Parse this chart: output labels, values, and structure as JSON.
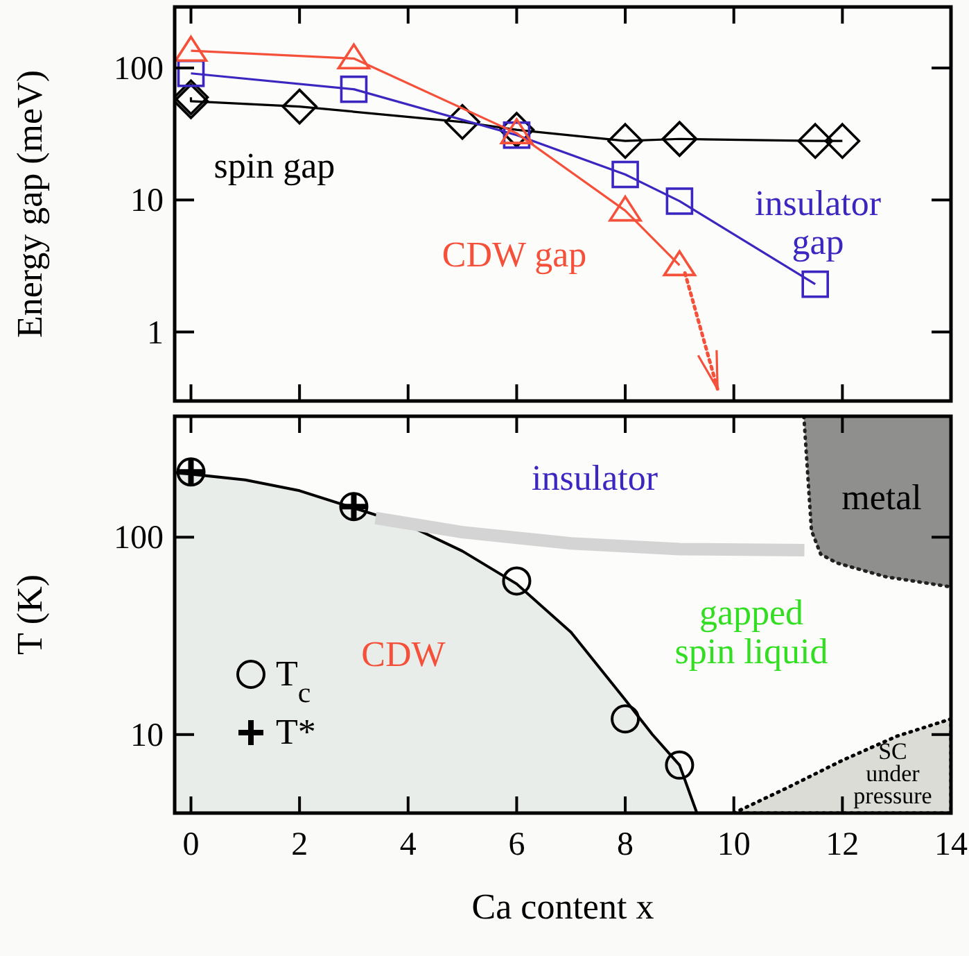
{
  "chart_data": [
    {
      "type": "line",
      "xlim": [
        -0.3,
        14
      ],
      "xticks": [
        0,
        2,
        4,
        6,
        8,
        10,
        12,
        14
      ],
      "ylim": [
        0.3,
        290
      ],
      "yticks": [
        1,
        10,
        100
      ],
      "log": "y",
      "ylabel": "Energy gap (meV)",
      "tick_labels": "y",
      "series": [
        {
          "color": "#000000",
          "marker": "diamond",
          "x": [
            0,
            0,
            2,
            5,
            6,
            8,
            9,
            9,
            11.5,
            12
          ],
          "values": [
            60,
            56,
            51,
            39,
            34,
            28,
            29,
            29,
            28,
            28
          ]
        },
        {
          "color": "#3b27c0",
          "marker": "square",
          "x": [
            0,
            3,
            6,
            8,
            9,
            11.5
          ],
          "values": [
            91,
            69,
            31,
            15.6,
            9.8,
            2.3
          ]
        },
        {
          "color": "#f5503a",
          "marker": "triangle",
          "x": [
            0,
            3,
            6,
            8,
            9
          ],
          "values": [
            135,
            118,
            32,
            8.3,
            3.2
          ]
        },
        {
          "color": "#f5503a",
          "marker": "none",
          "line_style": "dotted",
          "x": [
            9.1,
            9.7
          ],
          "values": [
            2.8,
            0.37
          ]
        }
      ],
      "annotations": [
        "spin gap",
        "CDW gap",
        "insulator\ngap"
      ]
    },
    {
      "type": "scatter",
      "xlim": [
        -0.3,
        14
      ],
      "xticks": [
        0,
        2,
        4,
        6,
        8,
        10,
        12,
        14
      ],
      "ylim": [
        4,
        410
      ],
      "yticks": [
        10,
        100
      ],
      "log": "y",
      "xlabel": "Ca content x",
      "ylabel": "T (K)",
      "legend": "bottom left",
      "series": [
        {
          "type": "area",
          "color": "#e9ede9",
          "line_style": "solid",
          "x": [
            -0.3,
            1,
            2,
            4,
            5,
            6,
            7,
            8,
            8.5,
            9,
            9.32
          ],
          "values": [
            213,
            195,
            172,
            115,
            85,
            58,
            33,
            15,
            10,
            7.0,
            4
          ]
        },
        {
          "type": "line",
          "color": "#d4d4d4",
          "marker": "none",
          "x": [
            3.4,
            5,
            7,
            9,
            11.3
          ],
          "values": [
            125,
            106,
            93,
            87,
            86
          ]
        },
        {
          "type": "line",
          "color": "#222321",
          "marker": "none",
          "line_style": "dotted",
          "x": [
            11.29,
            11.43,
            11.6,
            11.9,
            12.8,
            14
          ],
          "values": [
            410,
            108,
            82,
            74,
            63,
            56
          ],
          "lower": [
            410,
            108,
            82,
            74,
            63,
            56
          ],
          "upper": [
            410,
            410,
            410,
            410,
            410,
            410
          ]
        },
        {
          "type": "area",
          "color": "#dcdcd6",
          "line_style": "dotted",
          "x": [
            10,
            11,
            12,
            13,
            14
          ],
          "values": [
            4,
            5.4,
            7.4,
            9.8,
            12
          ]
        },
        {
          "name": "T$_{c}$",
          "color": "#000000",
          "marker": "circle",
          "x": [
            0,
            3,
            6,
            8,
            9
          ],
          "values": [
            214,
            143,
            60,
            12,
            7.0
          ]
        },
        {
          "name": "T*",
          "color": "#000000",
          "marker": "cross",
          "x": [
            0,
            3
          ],
          "values": [
            214,
            143
          ]
        }
      ],
      "annotations": [
        "insulator",
        "metal",
        "gapped\nspin liquid",
        "CDW",
        "SC\nunder\npressure"
      ]
    }
  ]
}
